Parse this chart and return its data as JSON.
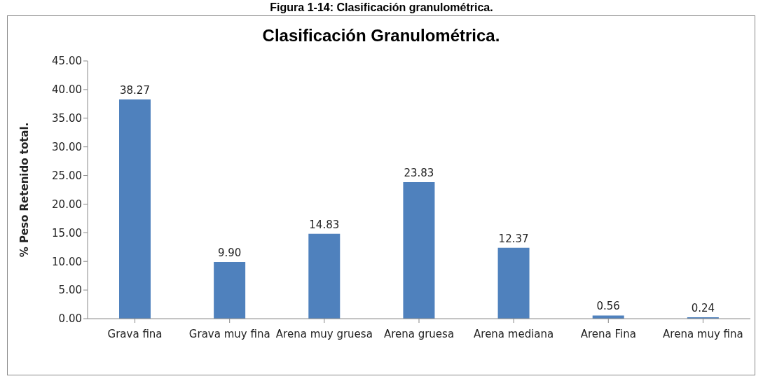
{
  "chart_data": {
    "type": "bar",
    "title": "Clasificación Granulométrica.",
    "ylabel": "% Peso Retenido total.",
    "annotations": [
      "Figura 1-14: Clasificación granulométrica."
    ],
    "categories": [
      "Grava fina",
      "Grava muy fina",
      "Arena muy gruesa",
      "Arena gruesa",
      "Arena mediana",
      "Arena Fina",
      "Arena muy fina"
    ],
    "values": [
      38.27,
      9.9,
      14.83,
      23.83,
      12.37,
      0.56,
      0.24
    ],
    "value_labels": [
      "38.27",
      "9.90",
      "14.83",
      "23.83",
      "12.37",
      "0.56",
      "0.24"
    ],
    "color": "#4f81bd",
    "ylim": [
      0,
      45
    ],
    "yticks": [
      {
        "value": 0,
        "label": "0.00"
      },
      {
        "value": 5,
        "label": "5.00"
      },
      {
        "value": 10,
        "label": "10.00"
      },
      {
        "value": 15,
        "label": "15.00"
      },
      {
        "value": 20,
        "label": "20.00"
      },
      {
        "value": 25,
        "label": "25.00"
      },
      {
        "value": 30,
        "label": "30.00"
      },
      {
        "value": 35,
        "label": "35.00"
      },
      {
        "value": 40,
        "label": "40.00"
      },
      {
        "value": 45,
        "label": "45.00"
      }
    ],
    "grid": false,
    "legend": false
  }
}
